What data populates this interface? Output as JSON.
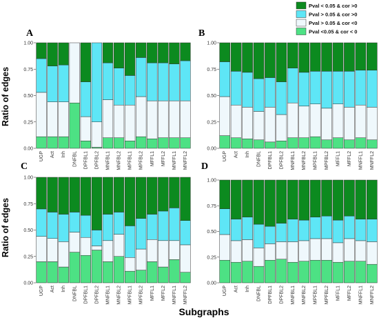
{
  "figure": {
    "ylabel": "Ratio of edges",
    "xlabel": "Subgraphs",
    "colors": {
      "pos_sig": "#0c8a1f",
      "pos_nonsig": "#5ee6f6",
      "neg_nonsig": "#eff8fc",
      "neg_sig": "#4de184"
    },
    "legend": [
      {
        "key": "pos_sig",
        "label": "Pval < 0.05 & cor >0"
      },
      {
        "key": "pos_nonsig",
        "label": "Pval > 0.05 & cor >0"
      },
      {
        "key": "neg_nonsig",
        "label": "Pval > 0.05 & cor <0"
      },
      {
        "key": "neg_sig",
        "label": "Pval <0.05 & cor < 0"
      }
    ]
  },
  "chart_data": [
    {
      "panel": "A",
      "type": "bar",
      "stacked": true,
      "categories": [
        "UGP",
        "Act",
        "Inh",
        "DNFBL",
        "DPFBL1",
        "DPFBL2",
        "MNFBL1",
        "MNFBL2",
        "MPFBL1",
        "MPFBL2",
        "MFFL1",
        "MFFL2",
        "MNFFL1",
        "MNFFL2"
      ],
      "ylim": [
        0,
        1
      ],
      "yticks": [
        "0.00",
        "0.25",
        "0.50",
        "0.75",
        "1.00"
      ],
      "series": [
        {
          "name": "Pval <0.05 & cor < 0",
          "key": "neg_sig",
          "values": [
            0.11,
            0.11,
            0.11,
            0.43,
            0.07,
            0.01,
            0.1,
            0.1,
            0.07,
            0.11,
            0.09,
            0.1,
            0.1,
            0.1
          ]
        },
        {
          "name": "Pval > 0.05 & cor <0",
          "key": "neg_nonsig",
          "values": [
            0.42,
            0.33,
            0.33,
            0.57,
            0.23,
            0.24,
            0.36,
            0.31,
            0.34,
            0.38,
            0.36,
            0.35,
            0.35,
            0.35
          ]
        },
        {
          "name": "Pval > 0.05 & cor >0",
          "key": "pos_nonsig",
          "values": [
            0.32,
            0.34,
            0.35,
            0.0,
            0.33,
            0.75,
            0.35,
            0.35,
            0.28,
            0.37,
            0.36,
            0.36,
            0.35,
            0.38
          ]
        },
        {
          "name": "Pval < 0.05 & cor >0",
          "key": "pos_sig",
          "values": [
            0.15,
            0.22,
            0.21,
            0.0,
            0.37,
            0.0,
            0.19,
            0.24,
            0.31,
            0.14,
            0.19,
            0.19,
            0.2,
            0.17
          ]
        }
      ]
    },
    {
      "panel": "B",
      "type": "bar",
      "stacked": true,
      "categories": [
        "UGP",
        "Act",
        "Inh",
        "DNFBL",
        "DPFBL1",
        "DPFBL2",
        "MNFBL1",
        "MNFBL2",
        "MPFBL1",
        "MPFBL2",
        "MFFL1",
        "MFFL2",
        "MNFFL1",
        "MNFFL2"
      ],
      "ylim": [
        0,
        1
      ],
      "yticks": [
        "0.00",
        "0.25",
        "0.50",
        "0.75",
        "1.00"
      ],
      "series": [
        {
          "name": "Pval <0.05 & cor < 0",
          "key": "neg_sig",
          "values": [
            0.12,
            0.1,
            0.09,
            0.08,
            0.06,
            0.07,
            0.1,
            0.1,
            0.11,
            0.08,
            0.1,
            0.08,
            0.1,
            0.08
          ]
        },
        {
          "name": "Pval > 0.05 & cor <0",
          "key": "neg_nonsig",
          "values": [
            0.37,
            0.31,
            0.3,
            0.27,
            0.33,
            0.25,
            0.33,
            0.3,
            0.31,
            0.3,
            0.32,
            0.31,
            0.31,
            0.31
          ]
        },
        {
          "name": "Pval > 0.05 & cor >0",
          "key": "pos_nonsig",
          "values": [
            0.33,
            0.32,
            0.33,
            0.31,
            0.28,
            0.31,
            0.33,
            0.32,
            0.31,
            0.35,
            0.31,
            0.34,
            0.33,
            0.35
          ]
        },
        {
          "name": "Pval < 0.05 & cor >0",
          "key": "pos_sig",
          "values": [
            0.18,
            0.27,
            0.28,
            0.34,
            0.33,
            0.37,
            0.24,
            0.28,
            0.27,
            0.27,
            0.27,
            0.27,
            0.26,
            0.26
          ]
        }
      ]
    },
    {
      "panel": "C",
      "type": "bar",
      "stacked": true,
      "categories": [
        "UGP",
        "Act",
        "Inh",
        "DNFBL",
        "DPFBL1",
        "DPFBL2",
        "MNFBL1",
        "MNFBL2",
        "MPFBL1",
        "MPFBL2",
        "MFFL1",
        "MFFL2",
        "MNFFL1",
        "MNFFL2"
      ],
      "ylim": [
        0,
        1
      ],
      "yticks": [
        "0.00",
        "0.25",
        "0.50",
        "0.75",
        "1.00"
      ],
      "series": [
        {
          "name": "Pval <0.05 & cor < 0",
          "key": "neg_sig",
          "values": [
            0.2,
            0.2,
            0.15,
            0.29,
            0.26,
            0.31,
            0.2,
            0.25,
            0.11,
            0.12,
            0.2,
            0.15,
            0.22,
            0.1
          ]
        },
        {
          "name": "Pval > 0.05 & cor <0",
          "key": "neg_nonsig",
          "values": [
            0.24,
            0.22,
            0.24,
            0.19,
            0.17,
            0.04,
            0.2,
            0.21,
            0.13,
            0.2,
            0.21,
            0.25,
            0.18,
            0.26
          ]
        },
        {
          "name": "Pval > 0.05 & cor >0",
          "key": "pos_nonsig",
          "values": [
            0.26,
            0.25,
            0.26,
            0.19,
            0.21,
            0.15,
            0.25,
            0.21,
            0.3,
            0.29,
            0.24,
            0.28,
            0.31,
            0.23
          ]
        },
        {
          "name": "Pval < 0.05 & cor >0",
          "key": "pos_sig",
          "values": [
            0.3,
            0.33,
            0.35,
            0.33,
            0.36,
            0.5,
            0.35,
            0.33,
            0.46,
            0.39,
            0.35,
            0.32,
            0.29,
            0.41
          ]
        }
      ]
    },
    {
      "panel": "D",
      "type": "bar",
      "stacked": true,
      "categories": [
        "UGP",
        "Act",
        "Inh",
        "DNFBL",
        "DPFBL1",
        "DPFBL2",
        "MNFBL1",
        "MNFBL2",
        "MPFBL1",
        "MPFBL2",
        "MFFL1",
        "MFFL2",
        "MNFFL1",
        "MNFFL2"
      ],
      "ylim": [
        0,
        1
      ],
      "yticks": [
        "0.00",
        "0.25",
        "0.50",
        "0.75",
        "1.00"
      ],
      "series": [
        {
          "name": "Pval <0.05 & cor < 0",
          "key": "neg_sig",
          "values": [
            0.22,
            0.2,
            0.21,
            0.16,
            0.22,
            0.23,
            0.2,
            0.21,
            0.22,
            0.22,
            0.2,
            0.21,
            0.21,
            0.18
          ]
        },
        {
          "name": "Pval > 0.05 & cor <0",
          "key": "neg_nonsig",
          "values": [
            0.25,
            0.21,
            0.21,
            0.18,
            0.16,
            0.17,
            0.2,
            0.2,
            0.21,
            0.21,
            0.19,
            0.22,
            0.2,
            0.22
          ]
        },
        {
          "name": "Pval > 0.05 & cor >0",
          "key": "pos_nonsig",
          "values": [
            0.25,
            0.21,
            0.22,
            0.23,
            0.17,
            0.18,
            0.22,
            0.2,
            0.21,
            0.22,
            0.22,
            0.22,
            0.21,
            0.22
          ]
        },
        {
          "name": "Pval < 0.05 & cor >0",
          "key": "pos_sig",
          "values": [
            0.28,
            0.38,
            0.36,
            0.43,
            0.45,
            0.42,
            0.38,
            0.39,
            0.36,
            0.35,
            0.39,
            0.35,
            0.38,
            0.38
          ]
        }
      ]
    }
  ]
}
